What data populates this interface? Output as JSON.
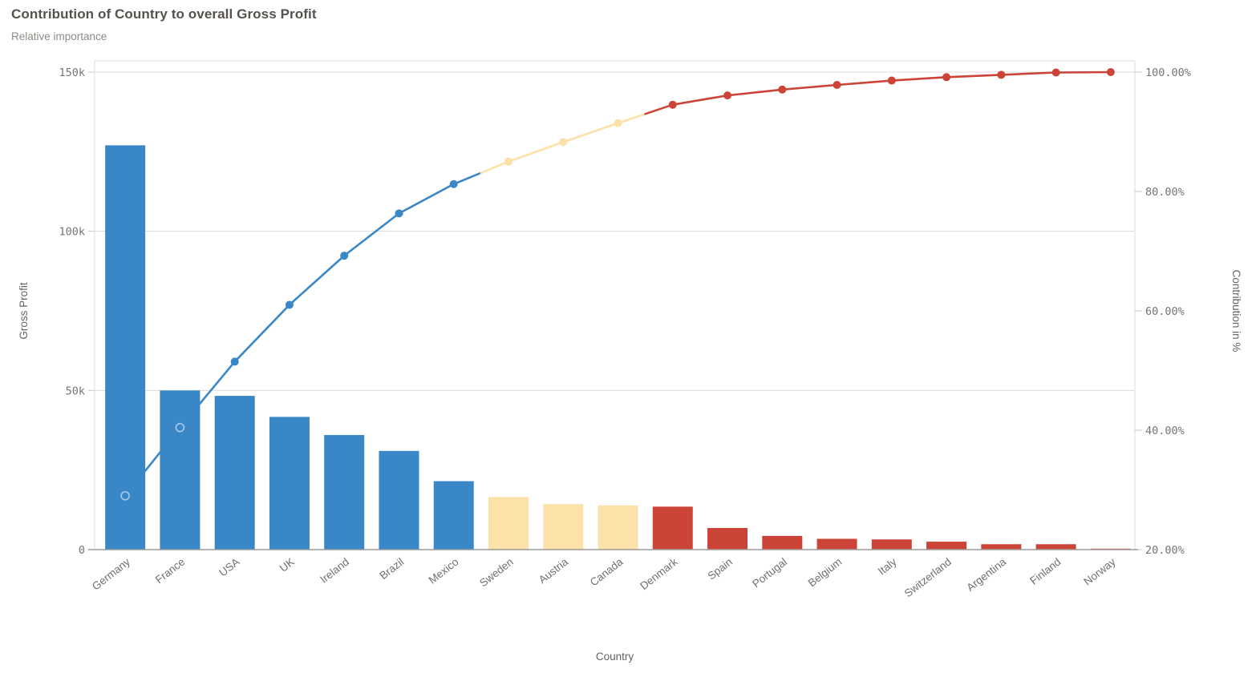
{
  "header": {
    "title": "Contribution of Country to overall Gross Profit",
    "subtitle": "Relative importance"
  },
  "chart_data": {
    "type": "bar",
    "subtype": "pareto-combo-bar-line",
    "title": "Contribution of Country to overall Gross Profit",
    "subtitle": "Relative importance",
    "xlabel": "Country",
    "ylabel_left": "Gross Profit",
    "ylabel_right": "Contribution in %",
    "legend": "none",
    "grid": "horizontal",
    "categories": [
      "Germany",
      "France",
      "USA",
      "UK",
      "Ireland",
      "Brazil",
      "Mexico",
      "Sweden",
      "Austria",
      "Canada",
      "Denmark",
      "Spain",
      "Portugal",
      "Belgium",
      "Italy",
      "Switzerland",
      "Argentina",
      "Finland",
      "Norway"
    ],
    "series": [
      {
        "name": "Gross Profit",
        "axis": "left",
        "type": "bar",
        "values": [
          127000,
          50000,
          48300,
          41700,
          36000,
          31000,
          21500,
          16500,
          14300,
          13900,
          13500,
          6800,
          4300,
          3400,
          3200,
          2500,
          1700,
          1700,
          300
        ]
      },
      {
        "name": "Contribution in %",
        "axis": "right",
        "type": "line",
        "values": [
          29.0,
          40.4,
          51.5,
          61.0,
          69.2,
          76.3,
          81.2,
          85.0,
          88.3,
          91.5,
          94.5,
          96.1,
          97.1,
          97.9,
          98.6,
          99.2,
          99.5,
          99.9,
          100.0
        ]
      }
    ],
    "groups": [
      "blue",
      "blue",
      "blue",
      "blue",
      "blue",
      "blue",
      "blue",
      "yellow",
      "yellow",
      "yellow",
      "red",
      "red",
      "red",
      "red",
      "red",
      "red",
      "red",
      "red",
      "red"
    ],
    "colors": {
      "blue": "#3a87c8",
      "yellow": "#fce1a8",
      "red": "#cc4437"
    },
    "y_left": {
      "max": 150000,
      "tick_values": [
        0,
        50000,
        100000,
        150000
      ],
      "tick_labels": [
        "0",
        "50k",
        "100k",
        "150k"
      ]
    },
    "y_right": {
      "min": 20,
      "max": 100,
      "tick_values": [
        20,
        40,
        60,
        80,
        100
      ],
      "tick_labels": [
        "20.00%",
        "40.00%",
        "60.00%",
        "80.00%",
        "100.00%"
      ]
    }
  }
}
